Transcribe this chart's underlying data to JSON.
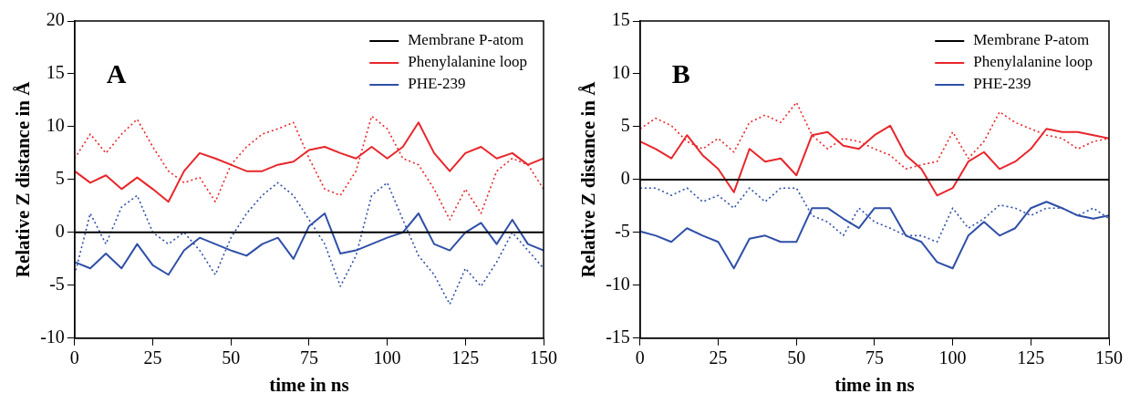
{
  "chart_data": [
    {
      "type": "line",
      "annotations": [
        "A"
      ],
      "xlabel": "time in ns",
      "ylabel": "Relative Z distance in Å",
      "xlim": [
        0,
        150
      ],
      "xticks": [
        0,
        25,
        50,
        75,
        100,
        125,
        150
      ],
      "ylim": [
        -10,
        20
      ],
      "yticks": [
        -10,
        -5,
        0,
        5,
        10,
        15,
        20
      ],
      "legend": "top right",
      "grid": false,
      "marker": "none",
      "x": [
        0,
        5,
        10,
        15,
        20,
        25,
        30,
        35,
        40,
        45,
        50,
        55,
        60,
        65,
        70,
        75,
        80,
        85,
        90,
        95,
        100,
        105,
        110,
        115,
        120,
        125,
        130,
        135,
        140,
        145,
        150
      ],
      "series": [
        {
          "name": "Membrane P-atom",
          "color": "#000000",
          "values": [
            0,
            0,
            0,
            0,
            0,
            0,
            0,
            0,
            0,
            0,
            0,
            0,
            0,
            0,
            0,
            0,
            0,
            0,
            0,
            0,
            0,
            0,
            0,
            0,
            0,
            0,
            0,
            0,
            0,
            0,
            0
          ]
        },
        {
          "name": "Phenylalanine loop",
          "color": "#e8262b",
          "values": [
            5.8,
            4.7,
            5.4,
            4.1,
            5.2,
            4.1,
            2.9,
            5.8,
            7.5,
            7,
            6.4,
            5.8,
            5.8,
            6.4,
            6.7,
            7.8,
            8.1,
            7.5,
            7,
            8.1,
            7,
            8.1,
            10.4,
            7.5,
            5.8,
            7.5,
            8.1,
            7,
            7.5,
            6.4,
            7
          ]
        },
        {
          "color": "#e8262b",
          "line_style": "dotted",
          "values": [
            7,
            9.3,
            7.5,
            9.3,
            10.7,
            8.1,
            5.8,
            4.7,
            5.2,
            2.9,
            6.4,
            8.1,
            9.3,
            9.8,
            10.4,
            7,
            4.1,
            3.5,
            5.8,
            11,
            9.8,
            7,
            6.4,
            4.1,
            1.2,
            4.1,
            1.8,
            5.8,
            7,
            6.4,
            4.1
          ]
        },
        {
          "name": "PHE-239",
          "color": "#2f4fa8",
          "values": [
            -2.8,
            -3.4,
            -2,
            -3.4,
            -1.1,
            -3.1,
            -4,
            -1.7,
            -0.5,
            -1.1,
            -1.7,
            -2.2,
            -1.1,
            -0.5,
            -2.5,
            0.6,
            1.8,
            -2,
            -1.7,
            -1.1,
            -0.5,
            0,
            1.8,
            -1.1,
            -1.7,
            0,
            0.9,
            -1.1,
            1.2,
            -1.1,
            -1.7
          ]
        },
        {
          "color": "#2f4fa8",
          "line_style": "dotted",
          "values": [
            -4,
            1.8,
            -1.1,
            2.4,
            3.5,
            0,
            -1.1,
            0,
            -1.7,
            -4,
            -0.5,
            1.8,
            3.5,
            4.7,
            3.5,
            1.2,
            -1.1,
            -5.1,
            -2.2,
            3.5,
            4.7,
            1.2,
            -2.2,
            -4,
            -6.8,
            -3.4,
            -5.1,
            -2.8,
            0,
            -1.7,
            -3.4
          ]
        }
      ]
    },
    {
      "type": "line",
      "annotations": [
        "B"
      ],
      "xlabel": "time in ns",
      "ylabel": "Relative Z distance in Å",
      "xlim": [
        0,
        150
      ],
      "xticks": [
        0,
        25,
        50,
        75,
        100,
        125,
        150
      ],
      "ylim": [
        -15,
        15
      ],
      "yticks": [
        -15,
        -10,
        -5,
        0,
        5,
        10,
        15
      ],
      "legend": "top right",
      "grid": false,
      "marker": "none",
      "x": [
        0,
        5,
        10,
        15,
        20,
        25,
        30,
        35,
        40,
        45,
        50,
        55,
        60,
        65,
        70,
        75,
        80,
        85,
        90,
        95,
        100,
        105,
        110,
        115,
        120,
        125,
        130,
        135,
        140,
        145,
        150
      ],
      "series": [
        {
          "name": "Membrane P-atom",
          "color": "#000000",
          "values": [
            0,
            0,
            0,
            0,
            0,
            0,
            0,
            0,
            0,
            0,
            0,
            0,
            0,
            0,
            0,
            0,
            0,
            0,
            0,
            0,
            0,
            0,
            0,
            0,
            0,
            0,
            0,
            0,
            0,
            0,
            0
          ]
        },
        {
          "name": "Phenylalanine loop",
          "color": "#e8262b",
          "values": [
            3.6,
            2.9,
            2,
            4.2,
            2.3,
            1,
            -1.2,
            2.9,
            1.7,
            2,
            0.4,
            4.2,
            4.5,
            3.2,
            2.9,
            4.2,
            5.1,
            2.3,
            1,
            -1.5,
            -0.8,
            1.7,
            2.6,
            1,
            1.7,
            2.9,
            4.8,
            4.5,
            4.5,
            4.2,
            3.9
          ]
        },
        {
          "color": "#e8262b",
          "line_style": "dotted",
          "values": [
            4.8,
            5.8,
            5.1,
            3.6,
            2.9,
            3.9,
            2.6,
            5.4,
            6.1,
            5.4,
            7.3,
            4.2,
            2.9,
            3.9,
            3.6,
            2.9,
            2.3,
            1,
            1.4,
            1.7,
            4.5,
            2,
            3.6,
            6.4,
            5.4,
            4.8,
            4.2,
            3.9,
            2.9,
            3.6,
            3.9
          ]
        },
        {
          "name": "PHE-239",
          "color": "#2f4fa8",
          "values": [
            -4.9,
            -5.3,
            -5.9,
            -4.6,
            -5.3,
            -5.9,
            -8.4,
            -5.6,
            -5.3,
            -5.9,
            -5.9,
            -2.7,
            -2.7,
            -3.7,
            -4.6,
            -2.7,
            -2.7,
            -5.3,
            -5.9,
            -7.8,
            -8.4,
            -5.3,
            -4,
            -5.3,
            -4.6,
            -2.7,
            -2.1,
            -2.7,
            -3.4,
            -3.7,
            -3.4
          ]
        },
        {
          "color": "#2f4fa8",
          "line_style": "dotted",
          "values": [
            -0.8,
            -0.8,
            -1.5,
            -0.8,
            -2.1,
            -1.5,
            -2.7,
            -0.8,
            -2.1,
            -0.8,
            -0.8,
            -3.4,
            -4,
            -5.3,
            -2.7,
            -4,
            -4.6,
            -5.3,
            -5.3,
            -5.9,
            -2.7,
            -4.6,
            -3.7,
            -2.4,
            -2.7,
            -3.4,
            -2.7,
            -2.7,
            -3.4,
            -2.7,
            -3.7
          ]
        }
      ]
    }
  ]
}
